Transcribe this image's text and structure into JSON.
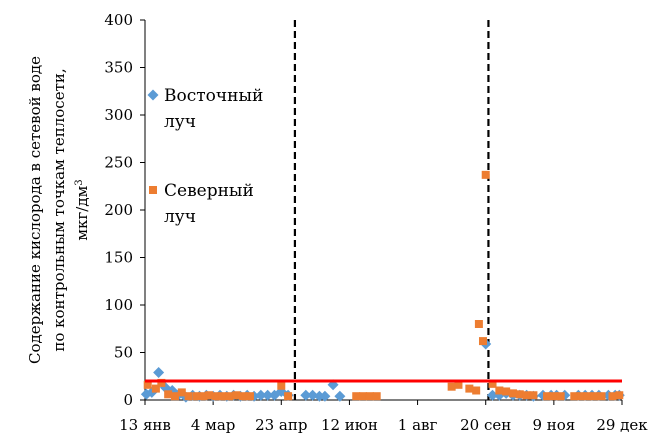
{
  "chart_data": {
    "type": "scatter",
    "ylabel_lines": [
      "Содержание кислорода в сетевой воде",
      "по контрольным точкам теплосети,",
      "мкг/дм"
    ],
    "ylabel_sup": "3",
    "ylim": [
      0,
      400
    ],
    "yticks": [
      "0",
      "50",
      "100",
      "150",
      "200",
      "250",
      "300",
      "350",
      "400"
    ],
    "xlim": [
      0,
      350
    ],
    "xticks": [
      {
        "label": "13 янв",
        "day": 0
      },
      {
        "label": "4 мар",
        "day": 50
      },
      {
        "label": "23 апр",
        "day": 100
      },
      {
        "label": "12 июн",
        "day": 150
      },
      {
        "label": "1 авг",
        "day": 200
      },
      {
        "label": "20 сен",
        "day": 250
      },
      {
        "label": "9 ноя",
        "day": 300
      },
      {
        "label": "29 дек",
        "day": 350
      }
    ],
    "hline": {
      "y": 20,
      "color": "#ff0000"
    },
    "vlines": [
      {
        "day": 110
      },
      {
        "day": 252
      }
    ],
    "series": [
      {
        "name": "Восточный луч",
        "name_lines": [
          "Восточный",
          "луч"
        ],
        "marker": "diamond",
        "color": "#5b9bd5",
        "points": [
          [
            1,
            6
          ],
          [
            5,
            8
          ],
          [
            10,
            29
          ],
          [
            15,
            13
          ],
          [
            20,
            10
          ],
          [
            25,
            6
          ],
          [
            30,
            3
          ],
          [
            35,
            5
          ],
          [
            40,
            4
          ],
          [
            45,
            5
          ],
          [
            50,
            4
          ],
          [
            55,
            5
          ],
          [
            60,
            4
          ],
          [
            65,
            5
          ],
          [
            70,
            4
          ],
          [
            75,
            5
          ],
          [
            80,
            4
          ],
          [
            85,
            5
          ],
          [
            90,
            5
          ],
          [
            95,
            5
          ],
          [
            100,
            9
          ],
          [
            105,
            5
          ],
          [
            118,
            5
          ],
          [
            123,
            5
          ],
          [
            128,
            4
          ],
          [
            132,
            4
          ],
          [
            138,
            16
          ],
          [
            143,
            4
          ],
          [
            250,
            59
          ],
          [
            255,
            5
          ],
          [
            260,
            5
          ],
          [
            265,
            7
          ],
          [
            270,
            5
          ],
          [
            275,
            5
          ],
          [
            280,
            5
          ],
          [
            285,
            4
          ],
          [
            292,
            5
          ],
          [
            298,
            5
          ],
          [
            302,
            5
          ],
          [
            308,
            5
          ],
          [
            318,
            5
          ],
          [
            323,
            5
          ],
          [
            328,
            5
          ],
          [
            333,
            5
          ],
          [
            340,
            5
          ],
          [
            345,
            5
          ],
          [
            348,
            5
          ]
        ]
      },
      {
        "name": "Северный луч",
        "name_lines": [
          "Северный",
          "луч"
        ],
        "marker": "square",
        "color": "#ed7d31",
        "points": [
          [
            2,
            16
          ],
          [
            8,
            12
          ],
          [
            12,
            18
          ],
          [
            17,
            6
          ],
          [
            22,
            4
          ],
          [
            27,
            8
          ],
          [
            32,
            4
          ],
          [
            38,
            4
          ],
          [
            43,
            4
          ],
          [
            47,
            5
          ],
          [
            52,
            4
          ],
          [
            57,
            4
          ],
          [
            62,
            4
          ],
          [
            67,
            5
          ],
          [
            72,
            4
          ],
          [
            77,
            4
          ],
          [
            100,
            15
          ],
          [
            105,
            4
          ],
          [
            155,
            4
          ],
          [
            160,
            4
          ],
          [
            165,
            4
          ],
          [
            170,
            4
          ],
          [
            225,
            14
          ],
          [
            230,
            16
          ],
          [
            238,
            12
          ],
          [
            243,
            10
          ],
          [
            250,
            237
          ],
          [
            245,
            80
          ],
          [
            248,
            62
          ],
          [
            255,
            17
          ],
          [
            260,
            10
          ],
          [
            265,
            9
          ],
          [
            270,
            7
          ],
          [
            275,
            6
          ],
          [
            280,
            5
          ],
          [
            285,
            5
          ],
          [
            295,
            4
          ],
          [
            300,
            4
          ],
          [
            305,
            4
          ],
          [
            315,
            4
          ],
          [
            320,
            4
          ],
          [
            325,
            4
          ],
          [
            330,
            4
          ],
          [
            335,
            4
          ],
          [
            343,
            4
          ],
          [
            348,
            5
          ]
        ]
      }
    ]
  }
}
